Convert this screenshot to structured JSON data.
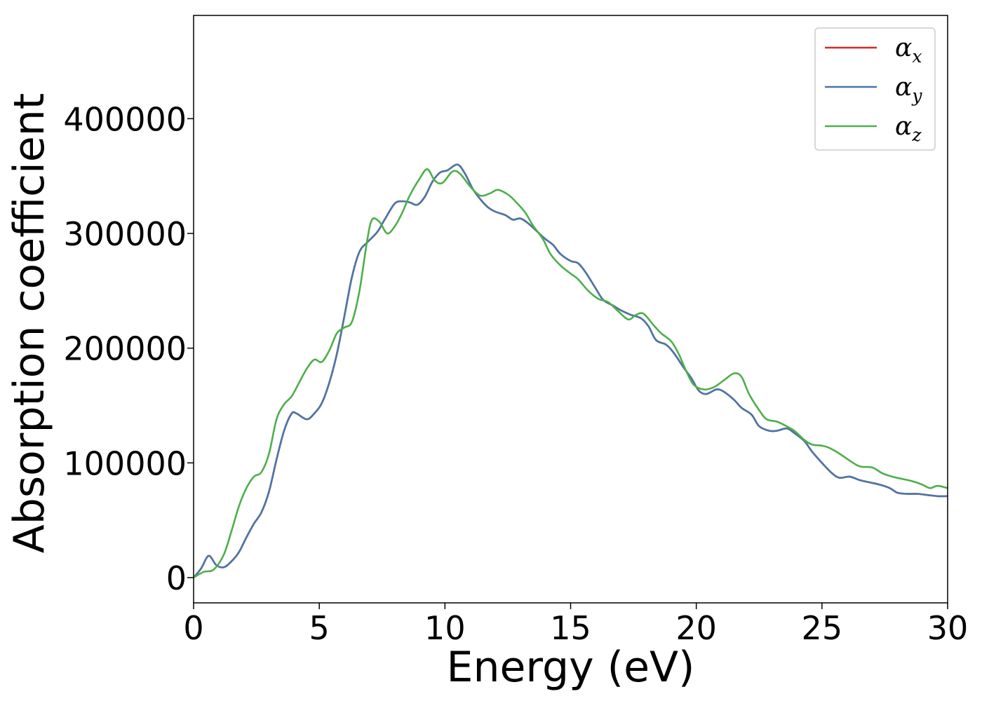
{
  "chart_data": {
    "type": "line",
    "title": "",
    "xlabel": "Energy (eV)",
    "ylabel": "Absorption coefficient",
    "xlim": [
      0,
      30
    ],
    "ylim": [
      -22000,
      490000
    ],
    "xticks": [
      0,
      5,
      10,
      15,
      20,
      25,
      30
    ],
    "yticks": [
      0,
      100000,
      200000,
      300000,
      400000
    ],
    "grid": false,
    "legend_position": "top-right",
    "series": [
      {
        "name": "αx",
        "legend": {
          "base": "α",
          "sub": "x"
        },
        "color": "#d62728",
        "x": [
          0,
          0.3,
          0.6,
          0.9,
          1.2,
          1.5,
          1.8,
          2.1,
          2.4,
          2.7,
          3.0,
          3.3,
          3.6,
          3.9,
          4.1,
          4.5,
          4.8,
          5.1,
          5.4,
          5.7,
          6.0,
          6.3,
          6.6,
          6.9,
          7.3,
          7.6,
          8.0,
          8.3,
          8.6,
          8.9,
          9.2,
          9.5,
          9.8,
          10.1,
          10.5,
          10.8,
          11.1,
          11.4,
          11.7,
          12.0,
          12.4,
          12.7,
          13.0,
          13.3,
          13.7,
          14.0,
          14.3,
          14.6,
          15.0,
          15.3,
          15.6,
          16.0,
          16.3,
          16.7,
          17.0,
          17.4,
          17.8,
          18.1,
          18.4,
          18.8,
          19.1,
          19.5,
          19.8,
          20.1,
          20.4,
          20.8,
          21.1,
          21.5,
          21.8,
          22.2,
          22.5,
          22.9,
          23.2,
          23.6,
          23.9,
          24.3,
          24.6,
          25.0,
          25.4,
          25.7,
          26.1,
          26.5,
          26.9,
          27.3,
          27.7,
          28.0,
          28.4,
          28.8,
          29.2,
          29.6,
          30.0
        ],
        "y": [
          0,
          8000,
          19000,
          11000,
          9000,
          14000,
          22000,
          35000,
          47000,
          57000,
          75000,
          103000,
          128000,
          143000,
          143000,
          138000,
          143000,
          152000,
          170000,
          195000,
          228000,
          262000,
          284000,
          292000,
          301000,
          312000,
          326000,
          328000,
          327000,
          325000,
          332000,
          345000,
          353000,
          355000,
          360000,
          352000,
          339000,
          330000,
          323000,
          319000,
          316000,
          312000,
          313000,
          309000,
          301000,
          295000,
          290000,
          282000,
          276000,
          274000,
          266000,
          252000,
          242000,
          237000,
          233000,
          229000,
          226000,
          219000,
          207000,
          203000,
          196000,
          183000,
          174000,
          163000,
          160000,
          164000,
          162000,
          155000,
          148000,
          142000,
          132000,
          128000,
          128000,
          130000,
          126000,
          119000,
          110000,
          100000,
          91000,
          87000,
          88000,
          85000,
          83000,
          81000,
          78000,
          74000,
          73000,
          73000,
          72000,
          71000,
          71000
        ]
      },
      {
        "name": "αy",
        "legend": {
          "base": "α",
          "sub": "y"
        },
        "color": "#4a76a8",
        "x": [
          0,
          0.3,
          0.6,
          0.9,
          1.2,
          1.5,
          1.8,
          2.1,
          2.4,
          2.7,
          3.0,
          3.3,
          3.6,
          3.9,
          4.1,
          4.5,
          4.8,
          5.1,
          5.4,
          5.7,
          6.0,
          6.3,
          6.6,
          6.9,
          7.3,
          7.6,
          8.0,
          8.3,
          8.6,
          8.9,
          9.2,
          9.5,
          9.8,
          10.1,
          10.5,
          10.8,
          11.1,
          11.4,
          11.7,
          12.0,
          12.4,
          12.7,
          13.0,
          13.3,
          13.7,
          14.0,
          14.3,
          14.6,
          15.0,
          15.3,
          15.6,
          16.0,
          16.3,
          16.7,
          17.0,
          17.4,
          17.8,
          18.1,
          18.4,
          18.8,
          19.1,
          19.5,
          19.8,
          20.1,
          20.4,
          20.8,
          21.1,
          21.5,
          21.8,
          22.2,
          22.5,
          22.9,
          23.2,
          23.6,
          23.9,
          24.3,
          24.6,
          25.0,
          25.4,
          25.7,
          26.1,
          26.5,
          26.9,
          27.3,
          27.7,
          28.0,
          28.4,
          28.8,
          29.2,
          29.6,
          30.0
        ],
        "y": [
          0,
          8000,
          19000,
          11000,
          9000,
          14000,
          22000,
          35000,
          47000,
          57000,
          75000,
          103000,
          128000,
          143000,
          143000,
          138000,
          143000,
          152000,
          170000,
          195000,
          228000,
          262000,
          284000,
          292000,
          301000,
          312000,
          326000,
          328000,
          327000,
          325000,
          332000,
          345000,
          353000,
          355000,
          360000,
          352000,
          339000,
          330000,
          323000,
          319000,
          316000,
          312000,
          313000,
          309000,
          301000,
          295000,
          290000,
          282000,
          276000,
          274000,
          266000,
          252000,
          242000,
          237000,
          233000,
          229000,
          226000,
          219000,
          207000,
          203000,
          196000,
          183000,
          174000,
          163000,
          160000,
          164000,
          162000,
          155000,
          148000,
          142000,
          132000,
          128000,
          128000,
          130000,
          126000,
          119000,
          110000,
          100000,
          91000,
          87000,
          88000,
          85000,
          83000,
          81000,
          78000,
          74000,
          73000,
          73000,
          72000,
          71000,
          71000
        ]
      },
      {
        "name": "αz",
        "legend": {
          "base": "α",
          "sub": "z"
        },
        "color": "#4daf4a",
        "x": [
          0,
          0.4,
          0.8,
          1.2,
          1.5,
          1.8,
          2.1,
          2.4,
          2.7,
          3.0,
          3.3,
          3.6,
          3.9,
          4.2,
          4.5,
          4.8,
          5.1,
          5.4,
          5.7,
          6.0,
          6.3,
          6.6,
          6.9,
          7.1,
          7.4,
          7.7,
          8.0,
          8.3,
          8.6,
          9.0,
          9.3,
          9.6,
          9.9,
          10.3,
          10.6,
          11.0,
          11.4,
          11.8,
          12.1,
          12.5,
          12.8,
          13.2,
          13.5,
          13.9,
          14.2,
          14.6,
          15.0,
          15.3,
          15.7,
          16.1,
          16.5,
          16.9,
          17.3,
          17.6,
          17.9,
          18.3,
          18.6,
          19.0,
          19.3,
          19.6,
          19.9,
          20.3,
          20.7,
          21.1,
          21.5,
          21.8,
          22.1,
          22.5,
          22.8,
          23.2,
          23.5,
          23.9,
          24.3,
          24.6,
          25.0,
          25.3,
          25.7,
          26.1,
          26.5,
          27.0,
          27.4,
          27.8,
          28.2,
          28.6,
          29.0,
          29.3,
          29.6,
          30.0
        ],
        "y": [
          0,
          5000,
          7000,
          20000,
          40000,
          62000,
          78000,
          88000,
          92000,
          108000,
          138000,
          151000,
          158000,
          170000,
          182000,
          190000,
          188000,
          198000,
          213000,
          218000,
          223000,
          250000,
          293000,
          312000,
          310000,
          300000,
          306000,
          318000,
          333000,
          348000,
          356000,
          346000,
          344000,
          354000,
          352000,
          341000,
          333000,
          335000,
          338000,
          334000,
          328000,
          318000,
          307000,
          295000,
          282000,
          272000,
          265000,
          260000,
          250000,
          243000,
          240000,
          232000,
          225000,
          229000,
          230000,
          220000,
          213000,
          206000,
          195000,
          180000,
          168000,
          164000,
          166000,
          172000,
          178000,
          175000,
          160000,
          146000,
          138000,
          136000,
          133000,
          128000,
          120000,
          116000,
          115000,
          113000,
          108000,
          102000,
          97000,
          96000,
          91000,
          88000,
          86000,
          84000,
          81000,
          78000,
          80000,
          78000
        ]
      }
    ]
  }
}
